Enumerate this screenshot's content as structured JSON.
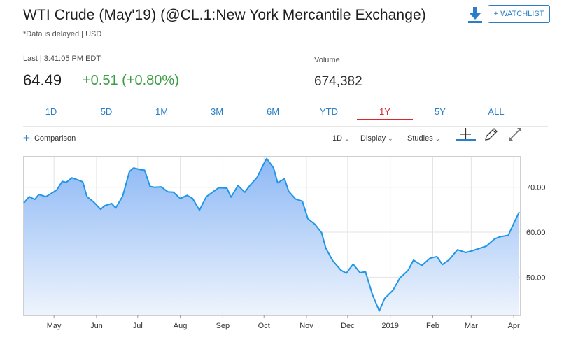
{
  "header": {
    "title": "WTI Crude (May'19) (@CL.1:New York Mercantile Exchange)",
    "subtitle": "*Data is delayed | USD",
    "watchlist_label": "+ WATCHLIST",
    "download_icon": "download-icon"
  },
  "quote": {
    "last_label": "Last | 3:41:05 PM EDT",
    "price": "64.49",
    "change": "+0.51 (+0.80%)",
    "volume_label": "Volume",
    "volume": "674,382",
    "up_color": "#3a9c43"
  },
  "tabs": [
    {
      "label": "1D",
      "active": false
    },
    {
      "label": "5D",
      "active": false
    },
    {
      "label": "1M",
      "active": false
    },
    {
      "label": "3M",
      "active": false
    },
    {
      "label": "6M",
      "active": false
    },
    {
      "label": "YTD",
      "active": false
    },
    {
      "label": "1Y",
      "active": true
    },
    {
      "label": "5Y",
      "active": false
    },
    {
      "label": "ALL",
      "active": false
    }
  ],
  "toolbar": {
    "comparison": "Comparison",
    "interval": "1D",
    "display": "Display",
    "studies": "Studies",
    "icons": [
      "crosshair-icon",
      "pencil-icon",
      "expand-icon"
    ]
  },
  "colors": {
    "accent": "#2b7fc8",
    "active_tab": "#e0242e",
    "line": "#2196e6",
    "fill_top": "#8db8f5",
    "fill_bottom": "#eef4fd"
  },
  "chart_data": {
    "type": "area",
    "title": "",
    "xlabel": "",
    "ylabel": "",
    "ylim": [
      41.5,
      76.8
    ],
    "y_ticks": [
      50,
      60,
      70
    ],
    "y_tick_labels": [
      "50.00",
      "60.00",
      "70.00"
    ],
    "x_tick_labels": [
      {
        "label": "May",
        "x": "2018-05-01"
      },
      {
        "label": "Jun",
        "x": "2018-06-01"
      },
      {
        "label": "Jul",
        "x": "2018-07-01"
      },
      {
        "label": "Aug",
        "x": "2018-08-01"
      },
      {
        "label": "Sep",
        "x": "2018-09-01"
      },
      {
        "label": "Oct",
        "x": "2018-10-01"
      },
      {
        "label": "Nov",
        "x": "2018-11-01"
      },
      {
        "label": "Dec",
        "x": "2018-12-01"
      },
      {
        "label": "2019",
        "x": "2019-01-01"
      },
      {
        "label": "Feb",
        "x": "2019-02-01"
      },
      {
        "label": "Mar",
        "x": "2019-03-01"
      },
      {
        "label": "Apr",
        "x": "2019-04-01"
      }
    ],
    "grid": true,
    "series": [
      {
        "x": [
          "2018-04-09",
          "2018-04-13",
          "2018-04-17",
          "2018-04-20",
          "2018-04-25",
          "2018-04-30",
          "2018-05-03",
          "2018-05-07",
          "2018-05-10",
          "2018-05-14",
          "2018-05-17",
          "2018-05-22",
          "2018-05-25",
          "2018-05-30",
          "2018-06-04",
          "2018-06-07",
          "2018-06-12",
          "2018-06-15",
          "2018-06-20",
          "2018-06-25",
          "2018-06-28",
          "2018-07-03",
          "2018-07-06",
          "2018-07-10",
          "2018-07-13",
          "2018-07-18",
          "2018-07-23",
          "2018-07-27",
          "2018-08-01",
          "2018-08-06",
          "2018-08-10",
          "2018-08-15",
          "2018-08-20",
          "2018-08-24",
          "2018-08-29",
          "2018-09-04",
          "2018-09-07",
          "2018-09-12",
          "2018-09-17",
          "2018-09-21",
          "2018-09-26",
          "2018-10-01",
          "2018-10-03",
          "2018-10-08",
          "2018-10-11",
          "2018-10-16",
          "2018-10-19",
          "2018-10-24",
          "2018-10-29",
          "2018-11-02",
          "2018-11-07",
          "2018-11-12",
          "2018-11-15",
          "2018-11-20",
          "2018-11-26",
          "2018-11-30",
          "2018-12-05",
          "2018-12-10",
          "2018-12-14",
          "2018-12-19",
          "2018-12-24",
          "2018-12-28",
          "2019-01-03",
          "2019-01-08",
          "2019-01-14",
          "2019-01-18",
          "2019-01-24",
          "2019-01-30",
          "2019-02-04",
          "2019-02-08",
          "2019-02-13",
          "2019-02-19",
          "2019-02-25",
          "2019-03-01",
          "2019-03-06",
          "2019-03-12",
          "2019-03-18",
          "2019-03-22",
          "2019-03-28",
          "2019-04-02",
          "2019-04-05"
        ],
        "values": [
          66.5,
          67.9,
          67.3,
          68.4,
          67.9,
          68.8,
          69.4,
          71.3,
          71.1,
          72.1,
          71.8,
          71.2,
          67.9,
          66.7,
          65.1,
          65.9,
          66.4,
          65.4,
          68.0,
          73.5,
          74.3,
          73.9,
          73.8,
          70.2,
          70.0,
          70.1,
          69.0,
          68.9,
          67.5,
          68.2,
          67.5,
          64.9,
          67.9,
          68.8,
          69.9,
          69.8,
          67.8,
          70.4,
          68.9,
          70.5,
          72.2,
          75.3,
          76.4,
          74.3,
          71.0,
          71.9,
          69.1,
          67.4,
          66.9,
          63.0,
          61.8,
          59.9,
          56.5,
          53.7,
          51.6,
          50.9,
          52.9,
          51.0,
          51.2,
          46.2,
          42.5,
          45.3,
          47.1,
          49.8,
          51.5,
          53.8,
          52.6,
          54.2,
          54.6,
          52.8,
          53.9,
          56.1,
          55.5,
          55.8,
          56.3,
          56.9,
          58.5,
          59.0,
          59.3,
          62.6,
          64.5
        ]
      }
    ]
  }
}
